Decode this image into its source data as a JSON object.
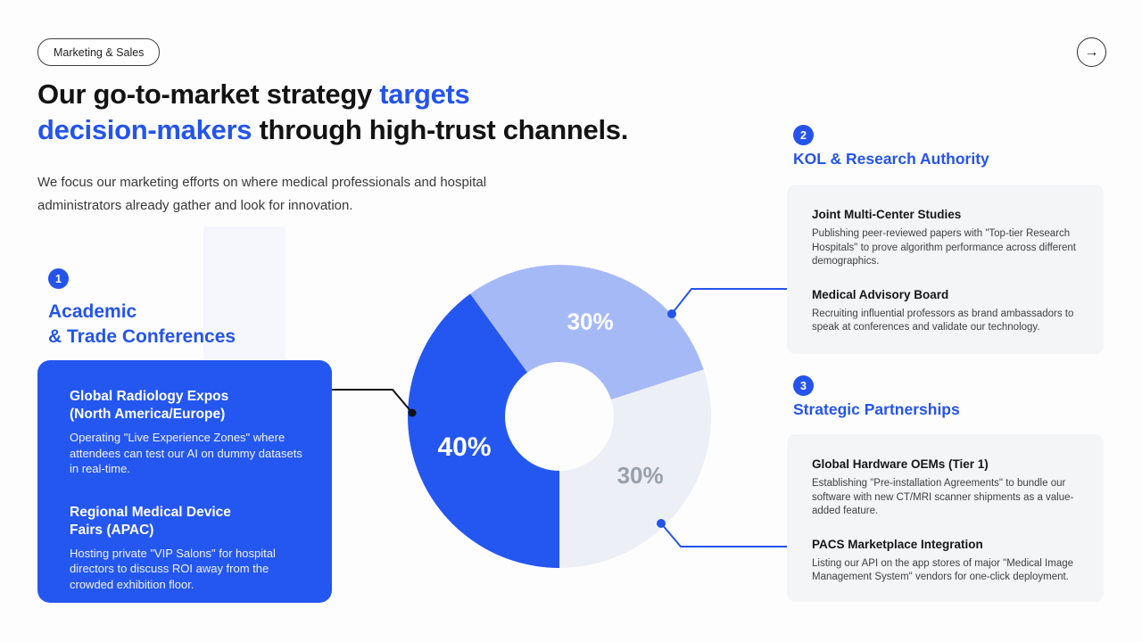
{
  "header": {
    "tag": "Marketing & Sales",
    "next_icon": "→"
  },
  "title": {
    "line1_black": "Our go-to-market strategy",
    "line1_blue": "targets",
    "line2_blue": "decision-makers",
    "line2_black": "through high-trust channels."
  },
  "subtitle": "We focus our marketing efforts on where medical professionals and hospital administrators already gather and look for innovation.",
  "sections": [
    {
      "number": "1",
      "heading_line1": "Academic",
      "heading_line2": "& Trade Conferences",
      "items": [
        {
          "title": "Global Radiology Expos\n(North America/Europe)",
          "desc": "Operating \"Live Experience Zones\" where attendees can test our AI on dummy datasets in real-time."
        },
        {
          "title": "Regional Medical Device\nFairs (APAC)",
          "desc": "Hosting private \"VIP Salons\" for hospital directors to discuss ROI away from the crowded exhibition floor."
        }
      ]
    },
    {
      "number": "2",
      "heading": "KOL & Research Authority",
      "items": [
        {
          "title": "Joint Multi-Center Studies",
          "desc": "Publishing peer-reviewed papers with \"Top-tier Research Hospitals\" to prove algorithm performance across different demographics."
        },
        {
          "title": "Medical Advisory Board",
          "desc": "Recruiting influential professors as brand ambassadors to speak at conferences and validate our technology."
        }
      ]
    },
    {
      "number": "3",
      "heading": "Strategic Partnerships",
      "items": [
        {
          "title": "Global Hardware OEMs (Tier 1)",
          "desc": "Establishing \"Pre-installation Agreements\" to bundle our software with new CT/MRI scanner shipments as a value-added feature."
        },
        {
          "title": "PACS Marketplace Integration",
          "desc": "Listing our API on the app stores of major \"Medical Image Management System\" vendors for one-click deployment."
        }
      ]
    }
  ],
  "chart_data": {
    "type": "pie",
    "subtype": "donut",
    "title": "",
    "start_angle_deg_clockwise_from_top": 180,
    "legend_position": "none",
    "segments": [
      {
        "label": "Academic & Trade Conferences",
        "value": 40,
        "display": "40%",
        "color": "#2457f0",
        "label_color": "#ffffff"
      },
      {
        "label": "KOL & Research Authority",
        "value": 30,
        "display": "30%",
        "color": "#a6b9f7",
        "label_color": "#ffffff"
      },
      {
        "label": "Strategic Partnerships",
        "value": 30,
        "display": "30%",
        "color": "#eceff5",
        "label_color": "#98a0ab"
      }
    ],
    "colors": {
      "accent": "#2454ec",
      "card_blue": "#2457f0",
      "pale_segment": "#eceff5",
      "muted_label": "#98a0ab"
    }
  }
}
